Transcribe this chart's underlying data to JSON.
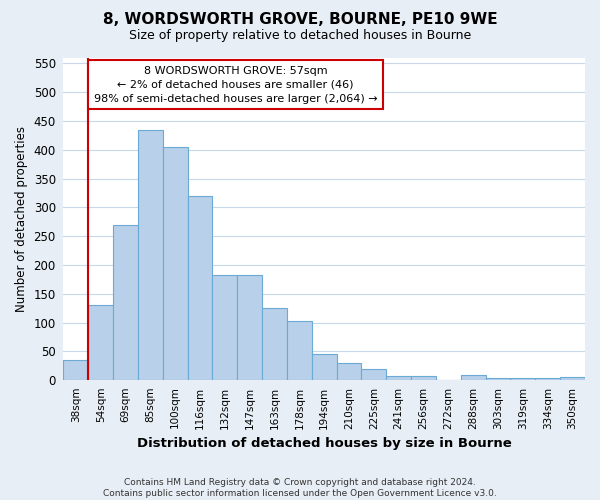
{
  "title": "8, WORDSWORTH GROVE, BOURNE, PE10 9WE",
  "subtitle": "Size of property relative to detached houses in Bourne",
  "xlabel": "Distribution of detached houses by size in Bourne",
  "ylabel": "Number of detached properties",
  "categories": [
    "38sqm",
    "54sqm",
    "69sqm",
    "85sqm",
    "100sqm",
    "116sqm",
    "132sqm",
    "147sqm",
    "163sqm",
    "178sqm",
    "194sqm",
    "210sqm",
    "225sqm",
    "241sqm",
    "256sqm",
    "272sqm",
    "288sqm",
    "303sqm",
    "319sqm",
    "334sqm",
    "350sqm"
  ],
  "values": [
    35,
    130,
    270,
    435,
    405,
    320,
    183,
    183,
    125,
    103,
    45,
    30,
    20,
    8,
    8,
    0,
    9,
    4,
    4,
    4,
    6
  ],
  "bar_color": "#b8d0ea",
  "bar_edge_color": "#6aaad4",
  "red_line_index": 1,
  "annotation_line1": "8 WORDSWORTH GROVE: 57sqm",
  "annotation_line2": "← 2% of detached houses are smaller (46)",
  "annotation_line3": "98% of semi-detached houses are larger (2,064) →",
  "ylim_min": 0,
  "ylim_max": 560,
  "yticks": [
    0,
    50,
    100,
    150,
    200,
    250,
    300,
    350,
    400,
    450,
    500,
    550
  ],
  "footer_line1": "Contains HM Land Registry data © Crown copyright and database right 2024.",
  "footer_line2": "Contains public sector information licensed under the Open Government Licence v3.0.",
  "fig_bg_color": "#e8eef5",
  "ax_bg_color": "#ffffff",
  "title_fontsize": 11,
  "subtitle_fontsize": 9,
  "ann_box_facecolor": "#ffffff",
  "ann_box_edgecolor": "#cc0000",
  "grid_color": "#c8d8e8",
  "red_line_color": "#cc0000"
}
